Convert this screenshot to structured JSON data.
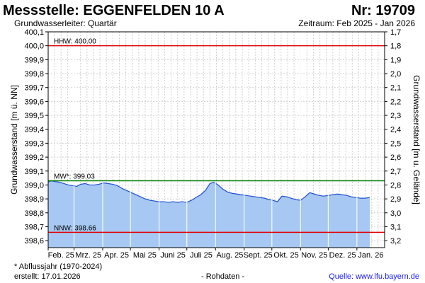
{
  "header": {
    "title": "Messstelle: EGGENFELDEN 10 A",
    "number": "Nr: 19709",
    "aquifer": "Grundwasserleiter: Quartär",
    "period": "Zeitraum: Feb 2025 - Jan 2026"
  },
  "footer": {
    "note": "* Abflussjahr (1970-2024)",
    "created": "erstellt:  17.01.2026",
    "raw": "- Rohdaten -",
    "source": "Quelle:  www.lfu.bayern.de"
  },
  "colors": {
    "fill": "#a6c8f2",
    "line": "#1f4fd6",
    "hhw": "#e00000",
    "nnw": "#e00000",
    "mw": "#008000",
    "grid": "#d0d0d0"
  },
  "chart_data": {
    "type": "area",
    "ylabel_left": "Grundwasserstand [m ü. NN]",
    "ylabel_right": "Grundwasserstand [m u. Gelände]",
    "ylim": [
      398.55,
      400.1
    ],
    "yticks_left": [
      400.1,
      400.0,
      399.9,
      399.8,
      399.7,
      399.6,
      399.5,
      399.4,
      399.3,
      399.2,
      399.1,
      399.0,
      398.9,
      398.8,
      398.7,
      398.6
    ],
    "ytick_labels_left": [
      "400,1",
      "400,0",
      "399,9",
      "399,8",
      "399,7",
      "399,6",
      "399,5",
      "399,4",
      "399,3",
      "399,2",
      "399,1",
      "399,0",
      "398,9",
      "398,8",
      "398,7",
      "398,6"
    ],
    "ytick_labels_right": [
      "1,7",
      "1,8",
      "1,9",
      "2,0",
      "2,1",
      "2,2",
      "2,3",
      "2,4",
      "2,5",
      "2,6",
      "2,7",
      "2,8",
      "2,9",
      "3,0",
      "3,1",
      "3,2"
    ],
    "xlim": [
      "2025-02-01",
      "2026-01-31"
    ],
    "month_ticks": [
      "2025-02-01",
      "2025-03-01",
      "2025-04-01",
      "2025-05-01",
      "2025-06-01",
      "2025-07-01",
      "2025-08-01",
      "2025-09-01",
      "2025-10-01",
      "2025-11-01",
      "2025-12-01",
      "2026-01-01"
    ],
    "month_labels": [
      "Feb. 25",
      "Mrz. 25",
      "Apr. 25",
      "Mai 25",
      "Juni 25",
      "Juli 25",
      "Aug. 25",
      "Sept. 25",
      "Okt. 25",
      "Nov. 25",
      "Dez. 25",
      "Jan. 26"
    ],
    "reference_lines": [
      {
        "label": "HHW: 400.00",
        "value": 400.0,
        "color": "#e00000"
      },
      {
        "label": "MW*: 399.03",
        "value": 399.03,
        "color": "#008000"
      },
      {
        "label": "NNW: 398.66",
        "value": 398.66,
        "color": "#e00000"
      }
    ],
    "series": [
      {
        "x": [
          "2025-02-01",
          "2025-02-04",
          "2025-02-08",
          "2025-02-13",
          "2025-02-18",
          "2025-02-23",
          "2025-02-28",
          "2025-03-04",
          "2025-03-08",
          "2025-03-13",
          "2025-03-18",
          "2025-03-23",
          "2025-03-28",
          "2025-04-02",
          "2025-04-07",
          "2025-04-12",
          "2025-04-17",
          "2025-04-22",
          "2025-04-27",
          "2025-05-02",
          "2025-05-07",
          "2025-05-12",
          "2025-05-17",
          "2025-05-22",
          "2025-05-27",
          "2025-06-01",
          "2025-06-06",
          "2025-06-11",
          "2025-06-16",
          "2025-06-21",
          "2025-06-26",
          "2025-07-01",
          "2025-07-06",
          "2025-07-11",
          "2025-07-16",
          "2025-07-21",
          "2025-07-26",
          "2025-07-30",
          "2025-08-04",
          "2025-08-09",
          "2025-08-14",
          "2025-08-19",
          "2025-08-24",
          "2025-08-29",
          "2025-09-03",
          "2025-09-08",
          "2025-09-13",
          "2025-09-18",
          "2025-09-23",
          "2025-09-28",
          "2025-10-02",
          "2025-10-07",
          "2025-10-12",
          "2025-10-17",
          "2025-10-22",
          "2025-10-27",
          "2025-11-01",
          "2025-11-06",
          "2025-11-11",
          "2025-11-16",
          "2025-11-21",
          "2025-11-26",
          "2025-12-01",
          "2025-12-06",
          "2025-12-11",
          "2025-12-16",
          "2025-12-21",
          "2025-12-26",
          "2025-12-31",
          "2026-01-05",
          "2026-01-10",
          "2026-01-15"
        ],
        "values": [
          399.02,
          399.03,
          399.025,
          399.02,
          399.01,
          399.0,
          398.995,
          398.99,
          399.005,
          399.01,
          399.0,
          399.0,
          399.005,
          399.015,
          399.01,
          399.005,
          398.995,
          398.975,
          398.96,
          398.945,
          398.93,
          398.915,
          398.9,
          398.89,
          398.885,
          398.88,
          398.88,
          398.875,
          398.88,
          398.875,
          398.88,
          398.875,
          398.89,
          398.91,
          398.93,
          398.96,
          399.01,
          399.02,
          399.0,
          398.97,
          398.95,
          398.94,
          398.935,
          398.93,
          398.925,
          398.92,
          398.915,
          398.91,
          398.905,
          398.895,
          398.89,
          398.88,
          398.92,
          398.915,
          398.905,
          398.895,
          398.89,
          398.915,
          398.945,
          398.935,
          398.925,
          398.92,
          398.925,
          398.93,
          398.935,
          398.93,
          398.925,
          398.915,
          398.91,
          398.905,
          398.905,
          398.91
        ]
      }
    ]
  }
}
